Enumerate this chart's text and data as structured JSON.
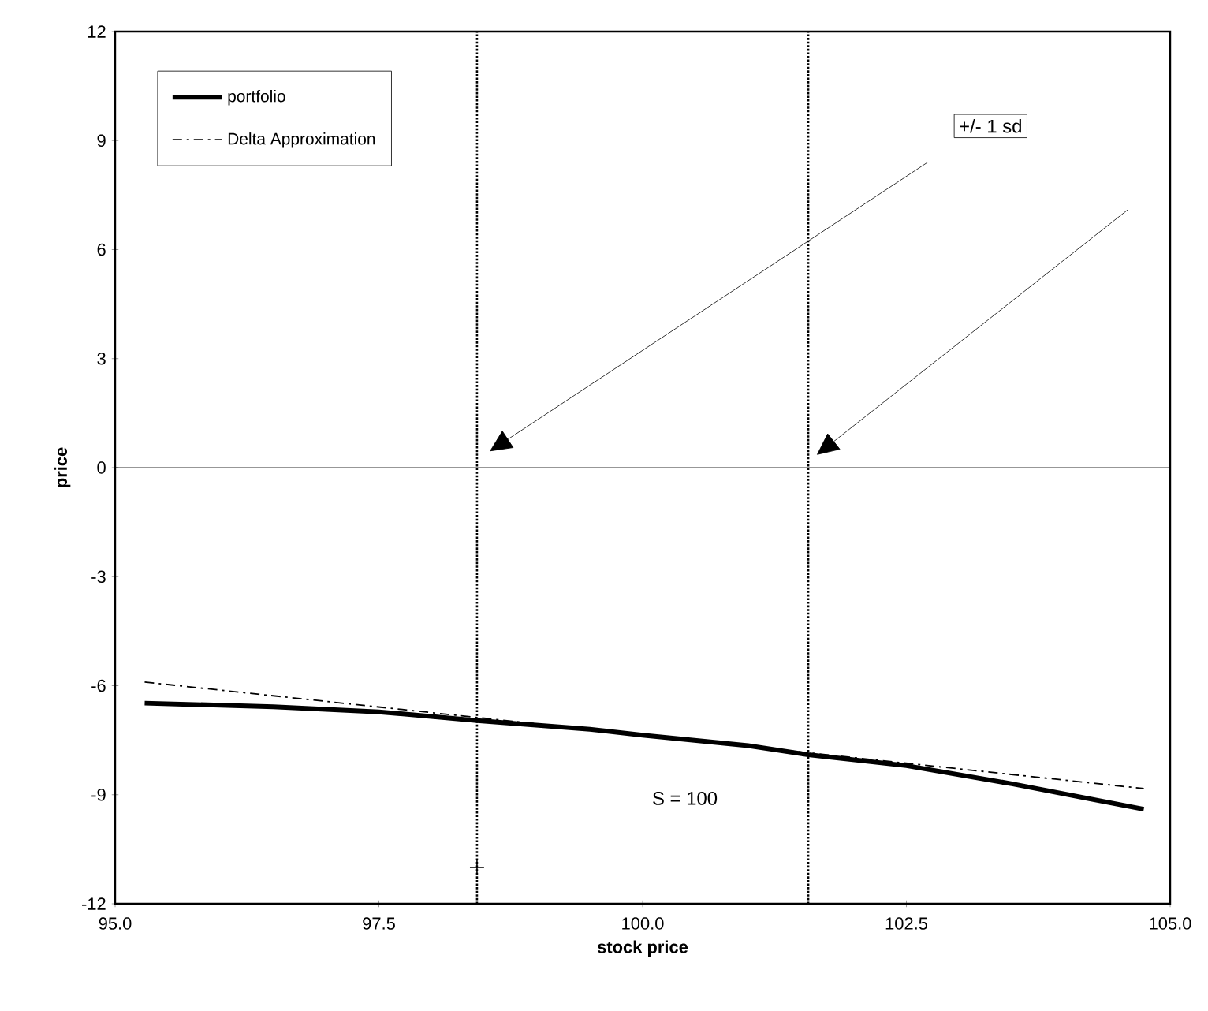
{
  "chart_data": {
    "type": "line",
    "xlabel": "stock price",
    "ylabel": "price",
    "xlim": [
      95,
      105
    ],
    "xticks": [
      {
        "value": 95,
        "label": "95.0"
      },
      {
        "value": 97.5,
        "label": "97.5"
      },
      {
        "value": 100,
        "label": "100.0"
      },
      {
        "value": 102.5,
        "label": "102.5"
      },
      {
        "value": 105,
        "label": "105.0"
      }
    ],
    "ylim": [
      -12,
      12
    ],
    "yticks": [
      -12,
      -9,
      -6,
      -3,
      0,
      3,
      6,
      9,
      12
    ],
    "legend": "top left",
    "grid": false,
    "marker": "none",
    "series": [
      {
        "name": "portfolio",
        "color": "#000000",
        "line_style": "solid",
        "x": [
          95.28,
          96.5,
          97.5,
          98.43,
          99.5,
          100,
          101,
          101.57,
          102.5,
          103.5,
          104.75
        ],
        "values": [
          -6.48,
          -6.58,
          -6.72,
          -6.96,
          -7.2,
          -7.36,
          -7.65,
          -7.9,
          -8.2,
          -8.7,
          -9.4
        ]
      },
      {
        "name": "Delta Approximation",
        "color": "#000000",
        "line_style": "dashdot",
        "x": [
          95.28,
          100,
          104.75
        ],
        "values": [
          -5.9,
          -7.36,
          -8.83
        ]
      },
      {
        "type": "scatter",
        "color": "#000000",
        "marker": "cross",
        "x": [
          98.43
        ],
        "values": [
          -11
        ]
      }
    ],
    "ref_lines": [
      {
        "axis": "x",
        "value": 98.43,
        "line_style": "dotted"
      },
      {
        "axis": "x",
        "value": 101.57,
        "line_style": "dotted"
      },
      {
        "axis": "y",
        "value": 0,
        "line_style": "solid"
      }
    ],
    "annotations": [
      "+/- 1 sd",
      "S = 100"
    ]
  }
}
